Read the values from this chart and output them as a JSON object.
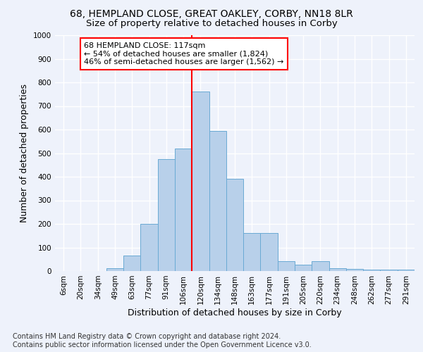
{
  "title": "68, HEMPLAND CLOSE, GREAT OAKLEY, CORBY, NN18 8LR",
  "subtitle": "Size of property relative to detached houses in Corby",
  "xlabel": "Distribution of detached houses by size in Corby",
  "ylabel": "Number of detached properties",
  "categories": [
    "6sqm",
    "20sqm",
    "34sqm",
    "49sqm",
    "63sqm",
    "77sqm",
    "91sqm",
    "106sqm",
    "120sqm",
    "134sqm",
    "148sqm",
    "163sqm",
    "177sqm",
    "191sqm",
    "205sqm",
    "220sqm",
    "234sqm",
    "248sqm",
    "262sqm",
    "277sqm",
    "291sqm"
  ],
  "values": [
    0,
    0,
    0,
    13,
    65,
    200,
    475,
    520,
    760,
    595,
    390,
    160,
    160,
    42,
    27,
    43,
    12,
    8,
    5,
    5,
    5
  ],
  "bar_color": "#b8d0ea",
  "bar_edge_color": "#6aaad4",
  "vline_x": 8.0,
  "vline_color": "red",
  "annotation_line1": "68 HEMPLAND CLOSE: 117sqm",
  "annotation_line2": "← 54% of detached houses are smaller (1,824)",
  "annotation_line3": "46% of semi-detached houses are larger (1,562) →",
  "annotation_box_color": "white",
  "annotation_box_edge_color": "red",
  "footnote": "Contains HM Land Registry data © Crown copyright and database right 2024.\nContains public sector information licensed under the Open Government Licence v3.0.",
  "ylim": [
    0,
    1000
  ],
  "yticks": [
    0,
    100,
    200,
    300,
    400,
    500,
    600,
    700,
    800,
    900,
    1000
  ],
  "background_color": "#eef2fb",
  "grid_color": "#ffffff",
  "title_fontsize": 10,
  "subtitle_fontsize": 9.5,
  "axis_label_fontsize": 9,
  "tick_fontsize": 7.5,
  "annotation_fontsize": 8,
  "footnote_fontsize": 7
}
